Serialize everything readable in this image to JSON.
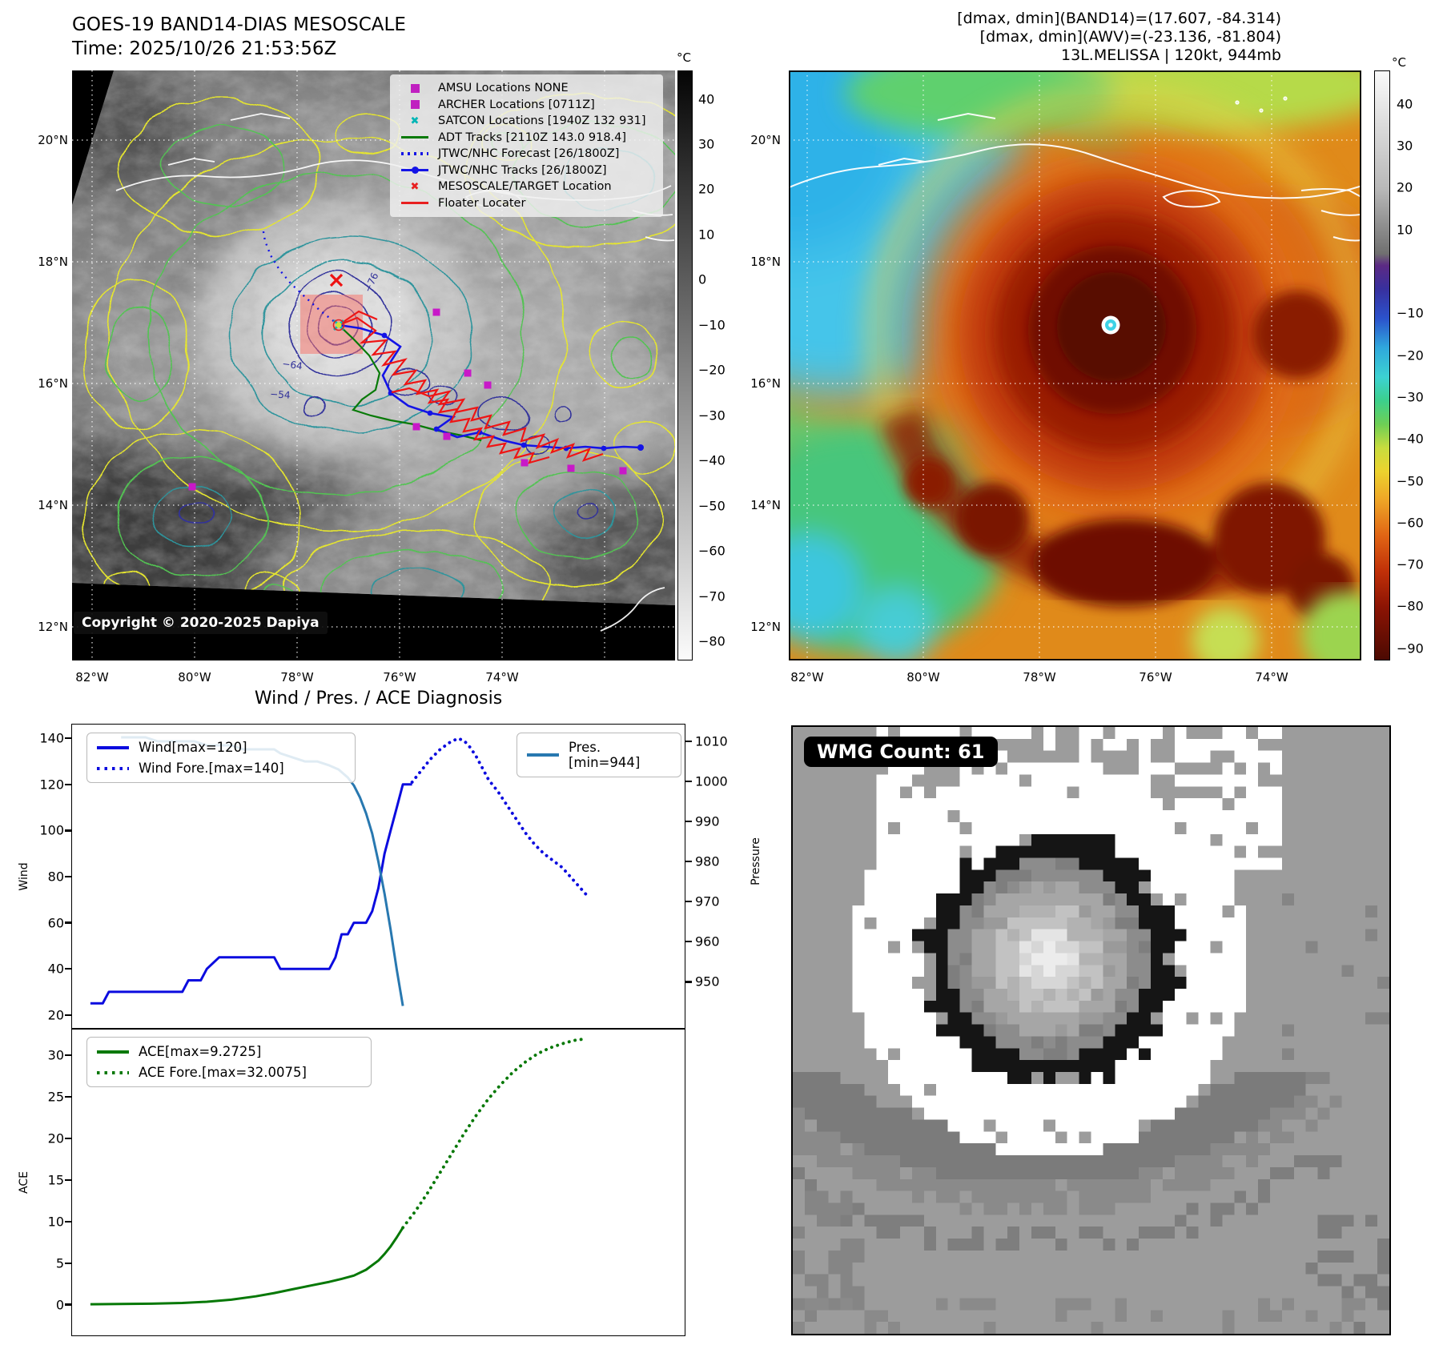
{
  "band14_panel": {
    "title_line1": "GOES-19 BAND14-DIAS MESOSCALE",
    "title_line2": "Time: 2025/10/26 21:53:56Z",
    "legend_items": [
      {
        "label": "AMSU Locations NONE",
        "marker": "square",
        "color": "#c020c0"
      },
      {
        "label": "ARCHER Locations [0711Z]",
        "marker": "square",
        "color": "#c020c0"
      },
      {
        "label": "SATCON Locations [1940Z 132 931]",
        "marker": "x",
        "color": "#00b5b5"
      },
      {
        "label": "ADT Tracks [2110Z 143.0 918.4]",
        "marker": "line",
        "color": "#077a07"
      },
      {
        "label": "JTWC/NHC Forecast [26/1800Z]",
        "marker": "dotted",
        "color": "#1414e6"
      },
      {
        "label": "JTWC/NHC Tracks [26/1800Z]",
        "marker": "line-dot",
        "color": "#1414e6"
      },
      {
        "label": "MESOSCALE/TARGET Location",
        "marker": "x",
        "color": "#e82020"
      },
      {
        "label": "Floater Locater",
        "marker": "line",
        "color": "#e82020"
      }
    ],
    "contour_labels": [
      "−76",
      "−64",
      "−54"
    ],
    "copyright": "Copyright © 2020-2025 Dapiya",
    "lat_ticks": [
      "20°N",
      "18°N",
      "16°N",
      "14°N",
      "12°N"
    ],
    "lon_ticks": [
      "82°W",
      "80°W",
      "78°W",
      "76°W",
      "74°W"
    ],
    "colorbar_unit": "°C",
    "colorbar_ticks": [
      "40",
      "30",
      "20",
      "10",
      "0",
      "−10",
      "−20",
      "−30",
      "−40",
      "−50",
      "−60",
      "−70",
      "−80"
    ]
  },
  "awv_panel": {
    "info_line1": "[dmax, dmin](BAND14)=(17.607, -84.314)",
    "info_line2": "[dmax, dmin](AWV)=(-23.136, -81.804)",
    "info_line3": "13L.MELISSA | 120kt, 944mb",
    "lat_ticks": [
      "20°N",
      "18°N",
      "16°N",
      "14°N",
      "12°N"
    ],
    "lon_ticks": [
      "82°W",
      "80°W",
      "78°W",
      "76°W",
      "74°W"
    ],
    "colorbar_unit": "°C",
    "colorbar_ticks": [
      "40",
      "30",
      "20",
      "10",
      "−10",
      "−20",
      "−30",
      "−40",
      "−50",
      "−60",
      "−70",
      "−80",
      "−90"
    ]
  },
  "wmg_panel": {
    "count_label": "WMG Count: 61"
  },
  "chart_data": [
    {
      "type": "line",
      "title": "Wind / Pres. / ACE Diagnosis",
      "ylabel_left": "Wind",
      "ylabel_right": "Pressure",
      "yticks_left": [
        140,
        120,
        100,
        80,
        60,
        40,
        20
      ],
      "yticks_right": [
        1010,
        1000,
        990,
        980,
        970,
        960,
        950
      ],
      "ylim_left": [
        14,
        146
      ],
      "ylim_right": [
        938.3,
        1014.2
      ],
      "xlim": [
        0,
        100
      ],
      "legend_position": "upper-left + upper-right",
      "series": [
        {
          "name": "Wind[max=120]",
          "axis": "left",
          "line": "solid",
          "color": "#0b0bdf",
          "x": [
            3,
            5,
            6,
            18,
            19,
            21,
            22,
            24,
            25,
            33,
            34,
            35,
            42,
            43,
            44,
            45,
            46,
            48,
            49,
            50,
            51,
            52,
            53,
            54,
            55.5
          ],
          "y": [
            25,
            25,
            30,
            30,
            35,
            35,
            40,
            45,
            45,
            45,
            40,
            40,
            40,
            45,
            55,
            55,
            60,
            60,
            65,
            75,
            90,
            100,
            110,
            120,
            120
          ]
        },
        {
          "name": "Wind Fore.[max=140]",
          "axis": "left",
          "line": "dotted",
          "color": "#0b0bdf",
          "x": [
            55.5,
            57,
            58.5,
            60,
            61.5,
            63,
            64,
            65,
            66,
            67,
            68,
            69.5,
            71,
            72.5,
            74,
            75.5,
            77,
            78.5,
            80,
            82,
            84
          ],
          "y": [
            121,
            126,
            131,
            135,
            138,
            140,
            139,
            136,
            132,
            127,
            122,
            117,
            111,
            105,
            99,
            94,
            90,
            87,
            84,
            78,
            72
          ]
        },
        {
          "name": "Pres.[min=944]",
          "axis": "right",
          "line": "solid",
          "color": "#2878b0",
          "x": [
            8,
            12,
            14,
            20,
            22,
            26,
            28,
            33,
            34,
            36,
            38,
            40,
            42,
            43.5,
            45,
            46,
            47,
            48,
            49,
            50,
            51,
            52,
            53,
            54
          ],
          "y": [
            1011,
            1011,
            1010,
            1010,
            1009,
            1009,
            1008,
            1008,
            1007,
            1006,
            1005,
            1005,
            1004,
            1003,
            1001,
            999,
            996,
            992,
            987,
            980,
            972,
            963,
            953,
            944
          ]
        }
      ]
    },
    {
      "type": "line",
      "ylabel_left": "ACE",
      "yticks_left": [
        30,
        25,
        20,
        15,
        10,
        5,
        0
      ],
      "ylim_left": [
        -3.7,
        33.2
      ],
      "xlim": [
        0,
        100
      ],
      "legend_position": "upper-left",
      "series": [
        {
          "name": "ACE[max=9.2725]",
          "axis": "left",
          "line": "solid",
          "color": "#067806",
          "x": [
            3,
            8,
            13,
            18,
            22,
            26,
            30,
            33,
            36,
            39,
            42,
            44,
            46,
            48,
            50,
            51,
            52,
            53,
            54
          ],
          "y": [
            0.05,
            0.08,
            0.12,
            0.2,
            0.35,
            0.6,
            1.0,
            1.4,
            1.85,
            2.3,
            2.75,
            3.1,
            3.5,
            4.2,
            5.3,
            6.1,
            7.0,
            8.1,
            9.2725
          ]
        },
        {
          "name": "ACE Fore.[max=32.0075]",
          "axis": "left",
          "line": "dotted",
          "color": "#067806",
          "x": [
            54,
            56,
            58,
            60,
            62,
            64,
            66,
            68,
            70,
            72,
            74,
            76,
            78,
            80,
            82,
            84
          ],
          "y": [
            9.2725,
            11.2,
            13.4,
            15.8,
            18.2,
            20.6,
            22.8,
            24.8,
            26.5,
            28.0,
            29.2,
            30.2,
            30.9,
            31.4,
            31.8,
            32.0075
          ]
        }
      ]
    }
  ]
}
